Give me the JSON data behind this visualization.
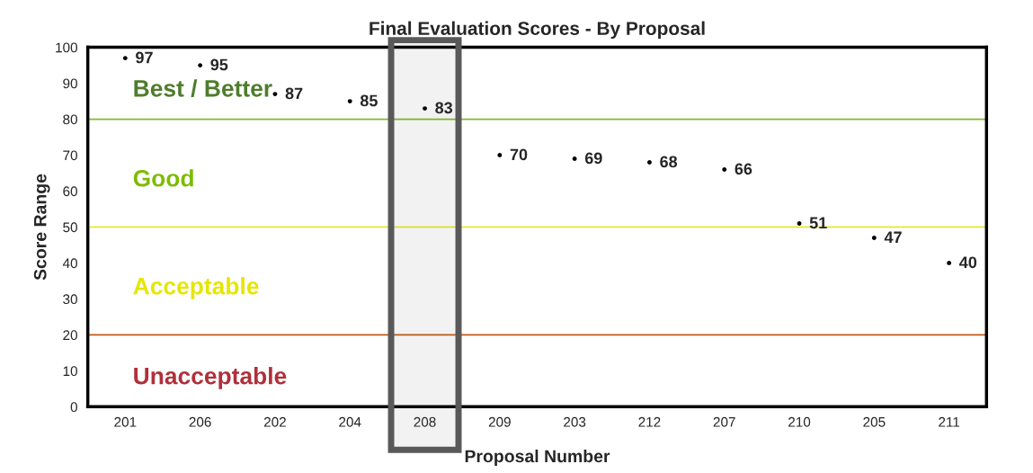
{
  "chart_data": {
    "type": "scatter",
    "title": "Final Evaluation Scores - By Proposal",
    "xlabel": "Proposal Number",
    "ylabel": "Score Range",
    "categories": [
      "201",
      "206",
      "202",
      "204",
      "208",
      "209",
      "203",
      "212",
      "207",
      "210",
      "205",
      "211"
    ],
    "values": [
      97,
      95,
      87,
      85,
      83,
      70,
      69,
      68,
      66,
      51,
      47,
      40
    ],
    "color": "#000000",
    "marker": "circle",
    "data_labels": true,
    "ylim": [
      0,
      100
    ],
    "yticks": [
      0,
      10,
      20,
      30,
      40,
      50,
      60,
      70,
      80,
      90,
      100
    ],
    "grid": false,
    "annotations": [
      "Best / Better",
      "Good",
      "Acceptable",
      "Unacceptable"
    ],
    "ref_lines": [
      {
        "axis": "y",
        "value": 80,
        "color": "#7dbb2c"
      },
      {
        "axis": "y",
        "value": 50,
        "color": "#e6e600"
      },
      {
        "axis": "y",
        "value": 20,
        "color": "#c55a11"
      }
    ],
    "bands": [
      {
        "axis": "x",
        "from": "208",
        "to": "208",
        "color": "#595959"
      }
    ]
  }
}
